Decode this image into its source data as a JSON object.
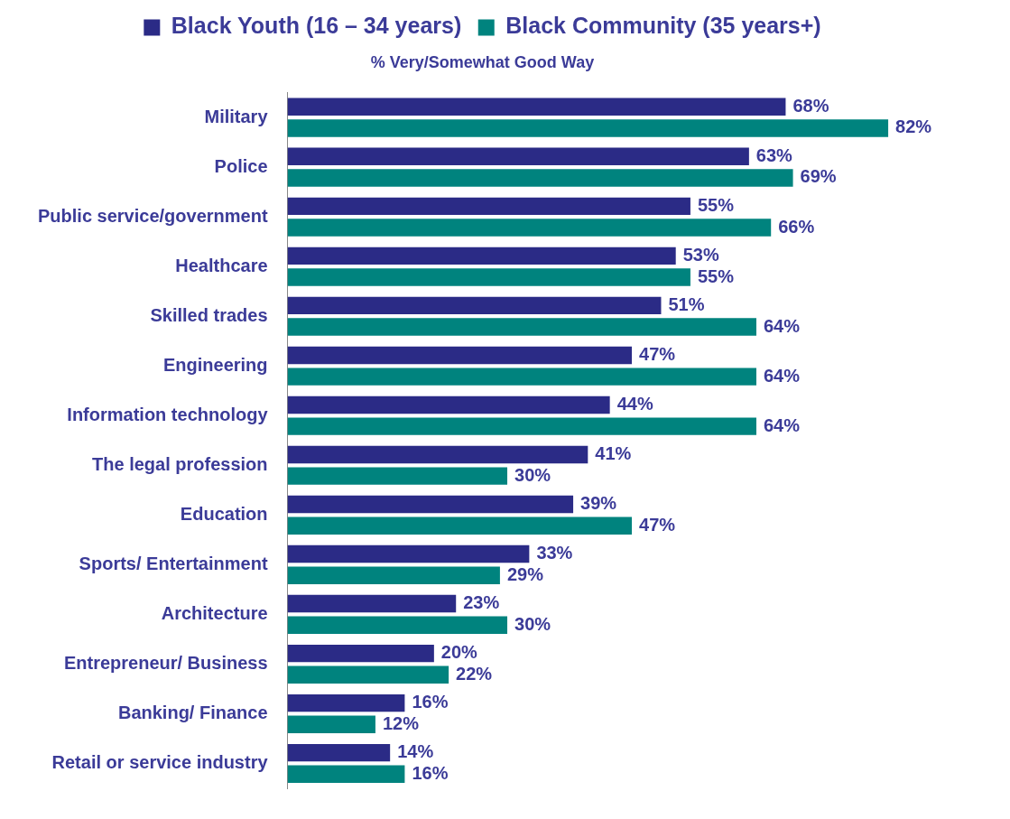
{
  "chart_data": {
    "type": "bar",
    "orientation": "horizontal",
    "subtitle": "% Very/Somewhat Good Way",
    "categories": [
      "Military",
      "Police",
      "Public service/government",
      "Healthcare",
      "Skilled trades",
      "Engineering",
      "Information technology",
      "The legal profession",
      "Education",
      "Sports/ Entertainment",
      "Architecture",
      "Entrepreneur/ Business",
      "Banking/ Finance",
      "Retail or service industry"
    ],
    "series": [
      {
        "name": "Black Youth (16 – 34 years)",
        "color": "#2b2b86",
        "values": [
          68,
          63,
          55,
          53,
          51,
          47,
          44,
          41,
          39,
          33,
          23,
          20,
          16,
          14
        ],
        "value_labels": [
          "68%",
          "63%",
          "55%",
          "53%",
          "51%",
          "47%",
          "44%",
          "41%",
          "39%",
          "33%",
          "23%",
          "20%",
          "16%",
          "14%"
        ]
      },
      {
        "name": "Black Community (35 years+)",
        "color": "#00837e",
        "values": [
          82,
          69,
          66,
          55,
          64,
          64,
          64,
          30,
          47,
          29,
          30,
          22,
          12,
          16
        ],
        "value_labels": [
          "82%",
          "69%",
          "66%",
          "55%",
          "64%",
          "64%",
          "64%",
          "30%",
          "47%",
          "29%",
          "30%",
          "22%",
          "12%",
          "16%"
        ]
      }
    ],
    "tick_labels": "y",
    "legend": "top",
    "grid": false
  }
}
